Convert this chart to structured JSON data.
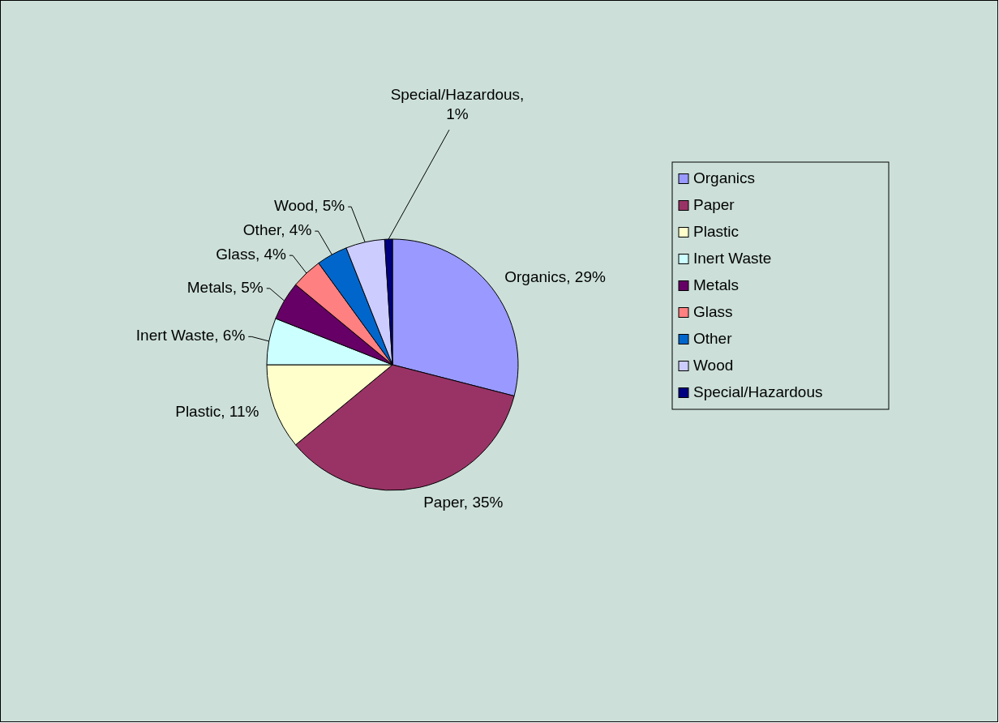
{
  "chart_data": {
    "type": "pie",
    "categories": [
      "Organics",
      "Paper",
      "Plastic",
      "Inert Waste",
      "Metals",
      "Glass",
      "Other",
      "Wood",
      "Special/Hazardous"
    ],
    "values": [
      29,
      35,
      11,
      6,
      5,
      4,
      4,
      5,
      1
    ],
    "colors": [
      "#9999ff",
      "#993366",
      "#ffffcc",
      "#ccffff",
      "#660066",
      "#ff8080",
      "#0066cc",
      "#ccccff",
      "#000080"
    ],
    "value_labels": [
      "Organics, 29%",
      "Paper, 35%",
      "Plastic, 11%",
      "Inert Waste, 6%",
      "Metals, 5%",
      "Glass, 4%",
      "Other, 4%",
      "Wood, 5%",
      "Special/Hazardous, 1%"
    ],
    "legend": "right"
  }
}
